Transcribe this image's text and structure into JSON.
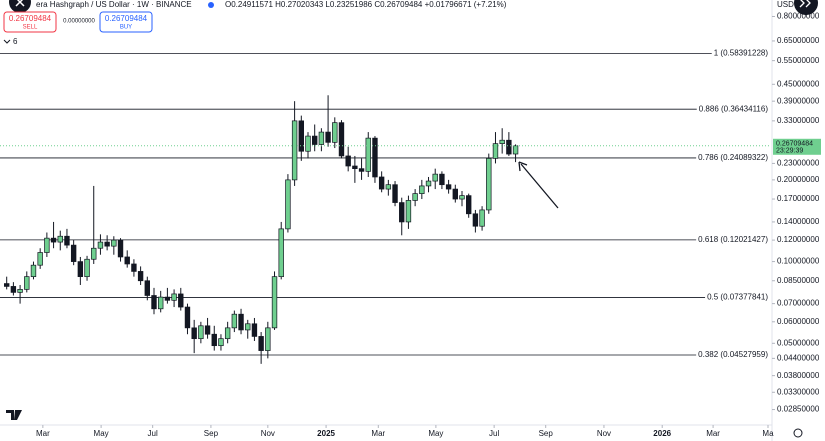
{
  "toolbar": {
    "symbol": "era Hashgraph / US Dollar · 1W · BINANCE",
    "ohlc": "O0.24911571 H0.27020343 L0.23251986 C0.26709484 +0.01796671 (+7.21%)",
    "sell_price": "0.26709484",
    "sell_label": "SELL",
    "spread": "0.00000000",
    "buy_price": "0.26709484",
    "buy_label": "BUY",
    "indicators": "6",
    "currency": "USD"
  },
  "chart_data": {
    "type": "candlestick",
    "log_scale": true,
    "up_color": "#6fcf8f",
    "down_color": "#131722",
    "xlim": [
      -1,
      114
    ],
    "ylim": [
      0.025,
      0.92
    ],
    "xticks": [
      {
        "value": 5.4,
        "label": "Mar"
      },
      {
        "value": 14.1,
        "label": "May"
      },
      {
        "value": 21.8,
        "label": "Jul"
      },
      {
        "value": 30.5,
        "label": "Sep"
      },
      {
        "value": 39,
        "label": "Nov"
      },
      {
        "value": 47.7,
        "label": "2025"
      },
      {
        "value": 55.5,
        "label": "Mar"
      },
      {
        "value": 64.1,
        "label": "May"
      },
      {
        "value": 72.8,
        "label": "Jul"
      },
      {
        "value": 80.5,
        "label": "Sep"
      },
      {
        "value": 89.2,
        "label": "Nov"
      },
      {
        "value": 97.9,
        "label": "2026"
      },
      {
        "value": 105.5,
        "label": "Mar"
      },
      {
        "value": 113.7,
        "label": "Ma"
      }
    ],
    "yticks": [
      {
        "value": 0.8,
        "label": "0.80000000"
      },
      {
        "value": 0.65,
        "label": "0.65000000"
      },
      {
        "value": 0.55,
        "label": "0.55000000"
      },
      {
        "value": 0.45,
        "label": "0.45000000"
      },
      {
        "value": 0.39,
        "label": "0.39000000"
      },
      {
        "value": 0.33,
        "label": "0.33000000"
      },
      {
        "value": 0.23,
        "label": "0.23000000"
      },
      {
        "value": 0.2,
        "label": "0.20000000"
      },
      {
        "value": 0.17,
        "label": "0.17000000"
      },
      {
        "value": 0.14,
        "label": "0.14000000"
      },
      {
        "value": 0.12,
        "label": "0.12000000"
      },
      {
        "value": 0.1,
        "label": "0.10000000"
      },
      {
        "value": 0.085,
        "label": "0.08500000"
      },
      {
        "value": 0.07,
        "label": "0.07000000"
      },
      {
        "value": 0.06,
        "label": "0.06000000"
      },
      {
        "value": 0.05,
        "label": "0.05000000"
      },
      {
        "value": 0.044,
        "label": "0.04400000"
      },
      {
        "value": 0.038,
        "label": "0.03800000"
      },
      {
        "value": 0.033,
        "label": "0.03300000"
      },
      {
        "value": 0.0285,
        "label": "0.02850000"
      }
    ],
    "fib_levels": [
      {
        "value": 0.58391228,
        "label": "1 (0.58391228)"
      },
      {
        "value": 0.36434116,
        "label": "0.886 (0.36434116)"
      },
      {
        "value": 0.24089322,
        "label": "0.786 (0.24089322)"
      },
      {
        "value": 0.12021427,
        "label": "0.618 (0.12021427)"
      },
      {
        "value": 0.07377841,
        "label": "0.5 (0.07377841)"
      },
      {
        "value": 0.04527959,
        "label": "0.382 (0.04527959)"
      }
    ],
    "last_price": {
      "value": 0.26709484,
      "label": "0.26709484"
    },
    "countdown": "23:29:39",
    "open": [
      0.083,
      0.081,
      0.077,
      0.079,
      0.088,
      0.097,
      0.108,
      0.122,
      0.118,
      0.124,
      0.115,
      0.1,
      0.088,
      0.102,
      0.112,
      0.118,
      0.114,
      0.12,
      0.104,
      0.098,
      0.092,
      0.085,
      0.075,
      0.067,
      0.074,
      0.072,
      0.076,
      0.068,
      0.057,
      0.052,
      0.058,
      0.054,
      0.049,
      0.052,
      0.057,
      0.064,
      0.056,
      0.059,
      0.053,
      0.047,
      0.057,
      0.088,
      0.132,
      0.2,
      0.33,
      0.255,
      0.29,
      0.27,
      0.3,
      0.275,
      0.325,
      0.245,
      0.225,
      0.22,
      0.215,
      0.285,
      0.205,
      0.185,
      0.192,
      0.165,
      0.14,
      0.168,
      0.178,
      0.19,
      0.198,
      0.21,
      0.192,
      0.185,
      0.17,
      0.175,
      0.15,
      0.135,
      0.155,
      0.24,
      0.272,
      0.28,
      0.24911571
    ],
    "high": [
      0.088,
      0.084,
      0.082,
      0.092,
      0.1,
      0.112,
      0.128,
      0.14,
      0.13,
      0.132,
      0.12,
      0.104,
      0.105,
      0.19,
      0.126,
      0.125,
      0.124,
      0.122,
      0.11,
      0.102,
      0.096,
      0.088,
      0.08,
      0.078,
      0.08,
      0.079,
      0.08,
      0.07,
      0.061,
      0.06,
      0.062,
      0.058,
      0.054,
      0.06,
      0.066,
      0.067,
      0.061,
      0.062,
      0.055,
      0.06,
      0.092,
      0.14,
      0.21,
      0.39,
      0.345,
      0.3,
      0.32,
      0.31,
      0.41,
      0.34,
      0.332,
      0.265,
      0.245,
      0.24,
      0.3,
      0.29,
      0.215,
      0.2,
      0.198,
      0.172,
      0.175,
      0.185,
      0.2,
      0.205,
      0.22,
      0.215,
      0.2,
      0.192,
      0.182,
      0.178,
      0.155,
      0.16,
      0.25,
      0.3,
      0.31,
      0.3,
      0.27020343
    ],
    "low": [
      0.079,
      0.075,
      0.07,
      0.077,
      0.086,
      0.094,
      0.104,
      0.112,
      0.11,
      0.112,
      0.097,
      0.082,
      0.085,
      0.098,
      0.106,
      0.11,
      0.106,
      0.1,
      0.095,
      0.088,
      0.082,
      0.072,
      0.064,
      0.065,
      0.07,
      0.068,
      0.066,
      0.054,
      0.046,
      0.05,
      0.052,
      0.047,
      0.047,
      0.05,
      0.055,
      0.054,
      0.052,
      0.051,
      0.042,
      0.044,
      0.056,
      0.086,
      0.128,
      0.19,
      0.235,
      0.24,
      0.255,
      0.255,
      0.265,
      0.262,
      0.24,
      0.215,
      0.195,
      0.2,
      0.205,
      0.195,
      0.18,
      0.175,
      0.16,
      0.125,
      0.132,
      0.16,
      0.17,
      0.18,
      0.185,
      0.185,
      0.178,
      0.165,
      0.16,
      0.145,
      0.128,
      0.13,
      0.15,
      0.23,
      0.25,
      0.245,
      0.23251986
    ],
    "close": [
      0.081,
      0.077,
      0.079,
      0.088,
      0.097,
      0.108,
      0.122,
      0.118,
      0.124,
      0.115,
      0.1,
      0.088,
      0.102,
      0.112,
      0.118,
      0.114,
      0.12,
      0.104,
      0.098,
      0.092,
      0.085,
      0.075,
      0.067,
      0.074,
      0.072,
      0.076,
      0.068,
      0.057,
      0.052,
      0.058,
      0.054,
      0.049,
      0.052,
      0.057,
      0.064,
      0.056,
      0.059,
      0.053,
      0.047,
      0.057,
      0.088,
      0.132,
      0.2,
      0.33,
      0.255,
      0.29,
      0.27,
      0.3,
      0.275,
      0.325,
      0.245,
      0.225,
      0.22,
      0.215,
      0.285,
      0.205,
      0.185,
      0.192,
      0.165,
      0.14,
      0.168,
      0.178,
      0.19,
      0.198,
      0.21,
      0.192,
      0.185,
      0.17,
      0.175,
      0.15,
      0.135,
      0.155,
      0.24,
      0.272,
      0.28,
      0.249,
      0.26709484
    ]
  }
}
